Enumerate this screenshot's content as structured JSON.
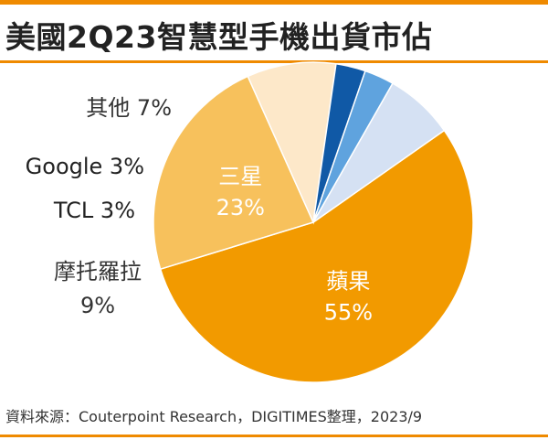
{
  "title": "美國2Q23智慧型手機出貨市佔",
  "source": "資料來源：Couterpoint Research，DIGITIMES整理，2023/9",
  "chart_data": {
    "type": "pie",
    "start_angle_deg": -35,
    "direction": "clockwise",
    "slices": [
      {
        "label": "蘋果",
        "value_label": "55%",
        "value": 55,
        "color": "#f29a00",
        "text_color": "#ffffff",
        "label_inside": true,
        "label_layout": "two-line"
      },
      {
        "label": "三星",
        "value_label": "23%",
        "value": 23,
        "color": "#f7c15c",
        "text_color": "#ffffff",
        "label_inside": true,
        "label_layout": "two-line"
      },
      {
        "label": "摩托羅拉",
        "value_label": "9%",
        "value": 9,
        "color": "#fde8c9",
        "text_color": "#333333",
        "label_inside": false,
        "label_layout": "two-line"
      },
      {
        "label": "TCL",
        "value_label": "3%",
        "value": 3,
        "color": "#1059a6",
        "text_color": "#222222",
        "label_inside": false,
        "label_layout": "inline"
      },
      {
        "label": "Google",
        "value_label": "3%",
        "value": 3,
        "color": "#5fa3de",
        "text_color": "#222222",
        "label_inside": false,
        "label_layout": "inline"
      },
      {
        "label": "其他",
        "value_label": "7%",
        "value": 7,
        "color": "#d5e1f3",
        "text_color": "#333333",
        "label_inside": false,
        "label_layout": "inline"
      }
    ]
  }
}
